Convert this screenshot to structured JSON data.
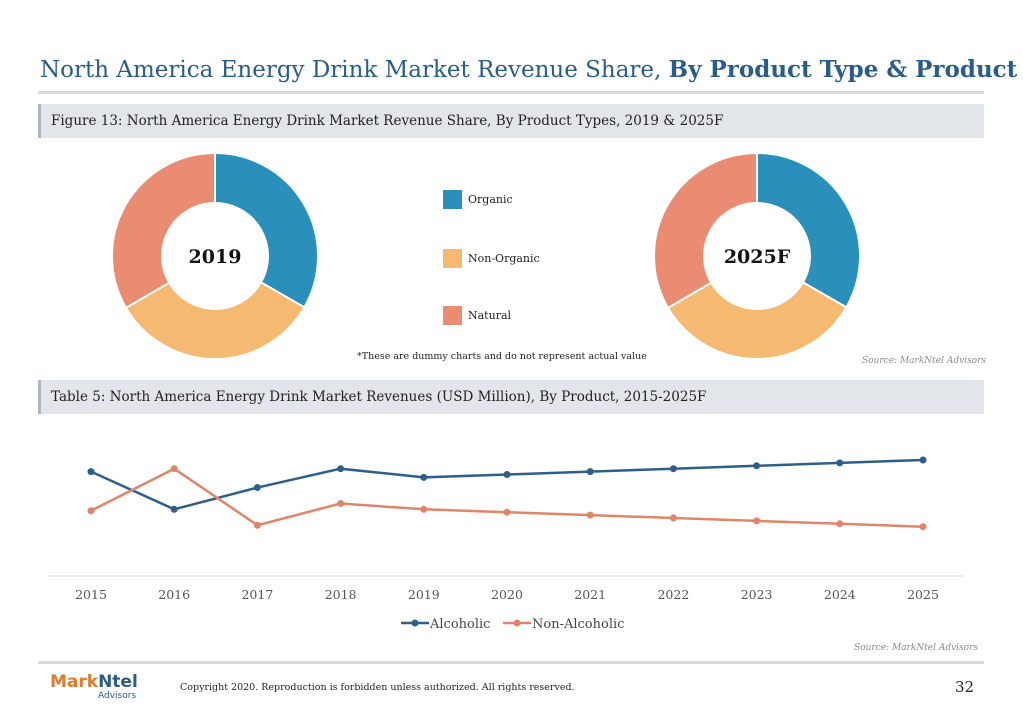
{
  "page": {
    "title_regular": "North America Energy Drink Market Revenue Share,",
    "title_bold": "By Product Type & Product",
    "figure_caption": "Figure 13: North America Energy Drink Market Revenue Share, By Product Types, 2019 & 2025F",
    "table_caption": "Table 5: North America Energy Drink Market Revenues (USD Million), By Product, 2015-2025F",
    "dummy_note": "*These are dummy charts and do not represent actual value",
    "source_top": "Source: MarkNtel Advisors",
    "source_bottom": "Source: MarkNtel Advisors",
    "copyright": "Copyright 2020. Reproduction is forbidden unless authorized. All rights reserved.",
    "page_number": "32",
    "logo": {
      "word1": "Mark",
      "word2": "Ntel",
      "sub": "Advisors"
    }
  },
  "chart_data": [
    {
      "type": "pie",
      "donut": true,
      "center_label": "2019",
      "labels": [
        "Organic",
        "Non-Organic",
        "Natural"
      ],
      "values": [
        33.3,
        33.3,
        33.4
      ],
      "colors": [
        "#2a8fba",
        "#f5b971",
        "#e98c72"
      ]
    },
    {
      "type": "pie",
      "donut": true,
      "center_label": "2025F",
      "labels": [
        "Organic",
        "Non-Organic",
        "Natural"
      ],
      "values": [
        33.3,
        33.3,
        33.4
      ],
      "colors": [
        "#2a8fba",
        "#f5b971",
        "#e98c72"
      ]
    },
    {
      "type": "line",
      "x": [
        "2015",
        "2016",
        "2017",
        "2018",
        "2019",
        "2020",
        "2021",
        "2022",
        "2023",
        "2024",
        "2025"
      ],
      "series": [
        {
          "name": "Alcoholic",
          "color": "#2e5f8a",
          "values": [
            7.2,
            4.6,
            6.1,
            7.4,
            6.8,
            7.0,
            7.2,
            7.4,
            7.6,
            7.8,
            8.0
          ]
        },
        {
          "name": "Non-Alcoholic",
          "color": "#e0856a",
          "values": [
            4.5,
            7.4,
            3.5,
            5.0,
            4.6,
            4.4,
            4.2,
            4.0,
            3.8,
            3.6,
            3.4
          ]
        }
      ],
      "ylim": [
        0,
        10
      ],
      "y_axis_visible": false,
      "grid": false,
      "legend_position": "bottom"
    }
  ]
}
